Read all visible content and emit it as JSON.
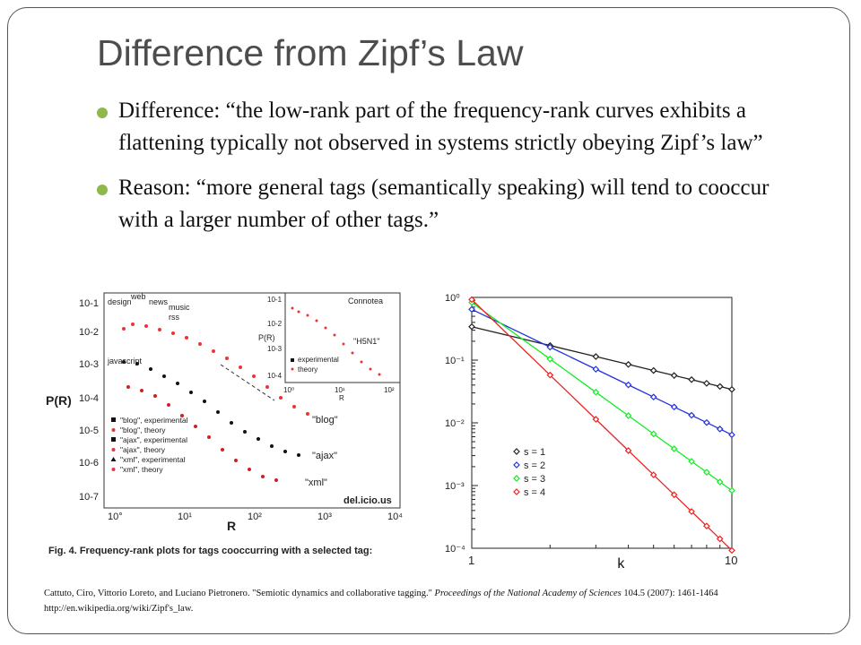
{
  "slide": {
    "title": "Difference from Zipf’s Law",
    "bullets": [
      "Difference: “the low-rank part of the frequency-rank curves exhibits a flattening typically not observed in systems strictly obeying Zipf’s law”",
      "Reason: “more general tags (semantically speaking) will tend to cooccur with a larger number of other tags.”"
    ],
    "citation": {
      "line1_pre": "Cattuto, Ciro, Vittorio Loreto, and Luciano Pietronero. \"Semiotic dynamics and collaborative tagging.\" ",
      "line1_journal": "Proceedings of the National Academy of Sciences",
      "line1_post": " 104.5 (2007): 1461-1464",
      "line2": "http://en.wikipedia.org/wiki/Zipf's_law."
    },
    "accent_color": "#8fb84a"
  },
  "left_figure": {
    "ylabel": "P(R)",
    "xlabel": "R",
    "caption": "Fig. 4.   Frequency-rank plots for tags cooccurring with a selected tag:",
    "y_ticks": [
      "10-1",
      "10-2",
      "10-3",
      "10-4",
      "10-5",
      "10-6",
      "10-7"
    ],
    "x_ticks": [
      "10°",
      "10¹",
      "10²",
      "10³",
      "10⁴"
    ],
    "callouts": [
      "design",
      "web",
      "news",
      "music",
      "rss",
      "javascript"
    ],
    "curve_labels": [
      "\"blog\"",
      "\"ajax\"",
      "\"xml\""
    ],
    "source_label": "del.icio.us",
    "legend": [
      "\"blog\", experimental",
      "\"blog\", theory",
      "\"ajax\", experimental",
      "\"ajax\", theory",
      "\"xml\", experimental",
      "\"xml\", theory"
    ],
    "inset": {
      "title": "Connotea",
      "ylabel": "P(R)",
      "xlabel": "R",
      "curve_label": "\"H5N1\"",
      "legend": [
        "experimental",
        "theory"
      ],
      "y_ticks": [
        "10-1",
        "10-2",
        "10-3",
        "10-4"
      ],
      "x_ticks": [
        "10⁰",
        "10¹",
        "10²"
      ]
    }
  },
  "chart_data": {
    "type": "line",
    "xlabel": "k",
    "ylabel": "",
    "x_scale": "log",
    "y_scale": "log",
    "xlim": [
      1,
      10
    ],
    "ylim": [
      0.0001,
      1
    ],
    "x_ticks": [
      "1",
      "10"
    ],
    "y_ticks": [
      "10⁰",
      "10⁻¹",
      "10⁻²",
      "10⁻³",
      "10⁻⁴"
    ],
    "legend_position": "lower-left",
    "x": [
      1,
      2,
      3,
      4,
      5,
      6,
      7,
      8,
      9,
      10
    ],
    "series": [
      {
        "name": "s = 1",
        "color": "#222222",
        "values": [
          0.341,
          0.171,
          0.114,
          0.0854,
          0.0683,
          0.0569,
          0.0488,
          0.0427,
          0.038,
          0.0341
        ]
      },
      {
        "name": "s = 2",
        "color": "#2233dd",
        "values": [
          0.645,
          0.161,
          0.0717,
          0.0403,
          0.0258,
          0.0179,
          0.0132,
          0.0101,
          0.00797,
          0.00645
        ]
      },
      {
        "name": "s = 3",
        "color": "#11ee22",
        "values": [
          0.832,
          0.104,
          0.0308,
          0.013,
          0.00666,
          0.00385,
          0.00243,
          0.00163,
          0.00114,
          0.000832
        ]
      },
      {
        "name": "s = 4",
        "color": "#ee2222",
        "values": [
          0.924,
          0.0578,
          0.0114,
          0.00361,
          0.00148,
          0.000713,
          0.000385,
          0.000226,
          0.000141,
          9.24e-05
        ]
      }
    ]
  }
}
